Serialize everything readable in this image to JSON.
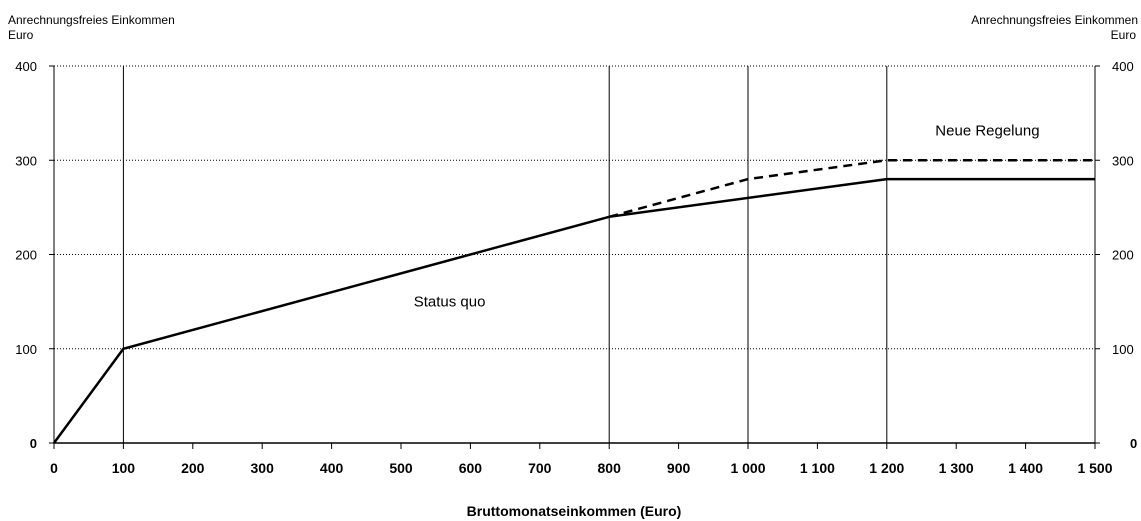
{
  "chart_data": {
    "type": "line",
    "xlabel": "Bruttomonatseinkommen (Euro)",
    "ylabel_left": "Anrechnungsfreies Einkommen",
    "yunit_left": "Euro",
    "ylabel_right": "Anrechnungsfreies Einkommen",
    "yunit_right": "Euro",
    "xlim": [
      0,
      1500
    ],
    "ylim": [
      0,
      400
    ],
    "x_ticks": [
      0,
      100,
      200,
      300,
      400,
      500,
      600,
      700,
      800,
      900,
      1000,
      1100,
      1200,
      1300,
      1400,
      1500
    ],
    "x_tick_labels": [
      "0",
      "100",
      "200",
      "300",
      "400",
      "500",
      "600",
      "700",
      "800",
      "900",
      "1 000",
      "1 100",
      "1 200",
      "1 300",
      "1 400",
      "1 500"
    ],
    "y_ticks": [
      0,
      100,
      200,
      300,
      400
    ],
    "y_tick_labels": [
      "0",
      "100",
      "200",
      "300",
      "400"
    ],
    "vertical_lines": [
      100,
      800,
      1000,
      1200
    ],
    "grid": "horizontal dotted",
    "series": [
      {
        "name": "Status quo",
        "style": "solid",
        "x": [
          0,
          100,
          800,
          1200,
          1500
        ],
        "y": [
          0,
          100,
          240,
          280,
          280
        ]
      },
      {
        "name": "Neue Regelung",
        "style": "dashed",
        "x": [
          800,
          1000,
          1200,
          1500
        ],
        "y": [
          240,
          280,
          300,
          300
        ]
      }
    ],
    "annotations": [
      {
        "text": "Status quo",
        "x": 570,
        "y": 145
      },
      {
        "text": "Neue Regelung",
        "x": 1345,
        "y": 326
      }
    ]
  }
}
